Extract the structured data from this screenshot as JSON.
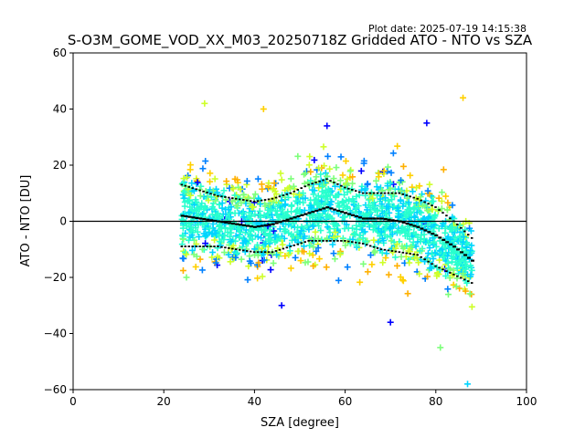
{
  "chart_data": {
    "type": "scatter",
    "title": "S-O3M_GOME_VOD_XX_M03_20250718Z Gridded ATO - NTO vs SZA",
    "subtitle": "Plot date: 2025-07-19 14:15:38",
    "xlabel": "SZA [degree]",
    "ylabel": "ATO - NTO [DU]",
    "xlim": [
      0,
      100
    ],
    "ylim": [
      -60,
      60
    ],
    "x_ticks": [
      "0",
      "20",
      "40",
      "60",
      "80",
      "100"
    ],
    "y_ticks": [
      "−60",
      "−40",
      "−20",
      "0",
      "20",
      "40",
      "60"
    ],
    "grid": false,
    "reference_line_y": 0,
    "marker": "plus",
    "colormap": [
      "#0000ff",
      "#0080ff",
      "#00d4ff",
      "#29ffce",
      "#7dff7a",
      "#ceff29",
      "#ffd000",
      "#ffb000"
    ],
    "envelope": {
      "x": [
        24,
        28,
        32,
        36,
        40,
        44,
        48,
        52,
        56,
        60,
        64,
        68,
        72,
        76,
        80,
        84,
        88
      ],
      "mean": [
        2,
        1,
        0,
        -1,
        -2,
        -1,
        1,
        3,
        5,
        3,
        1,
        1,
        0,
        -2,
        -5,
        -9,
        -14
      ],
      "upper": [
        13,
        11,
        9,
        8,
        7,
        8,
        10,
        13,
        15,
        12,
        10,
        10,
        10,
        8,
        5,
        0,
        -6
      ],
      "lower": [
        -9,
        -9,
        -9,
        -10,
        -11,
        -11,
        -9,
        -7,
        -7,
        -7,
        -8,
        -10,
        -11,
        -12,
        -16,
        -19,
        -22
      ]
    },
    "sample_points": [
      {
        "x": 24,
        "y": 2,
        "color": "#29ffce"
      },
      {
        "x": 25,
        "y": -20,
        "color": "#7dff7a"
      },
      {
        "x": 29,
        "y": 42,
        "color": "#ceff29"
      },
      {
        "x": 42,
        "y": 40,
        "color": "#ffd000"
      },
      {
        "x": 46,
        "y": -30,
        "color": "#0000ff"
      },
      {
        "x": 56,
        "y": 34,
        "color": "#0000ff"
      },
      {
        "x": 65,
        "y": -18,
        "color": "#ffb000"
      },
      {
        "x": 70,
        "y": -36,
        "color": "#0000ff"
      },
      {
        "x": 78,
        "y": 35,
        "color": "#0000ff"
      },
      {
        "x": 81,
        "y": -45,
        "color": "#7dff7a"
      },
      {
        "x": 86,
        "y": 44,
        "color": "#ffd000"
      },
      {
        "x": 87,
        "y": -58,
        "color": "#00d4ff"
      }
    ]
  }
}
